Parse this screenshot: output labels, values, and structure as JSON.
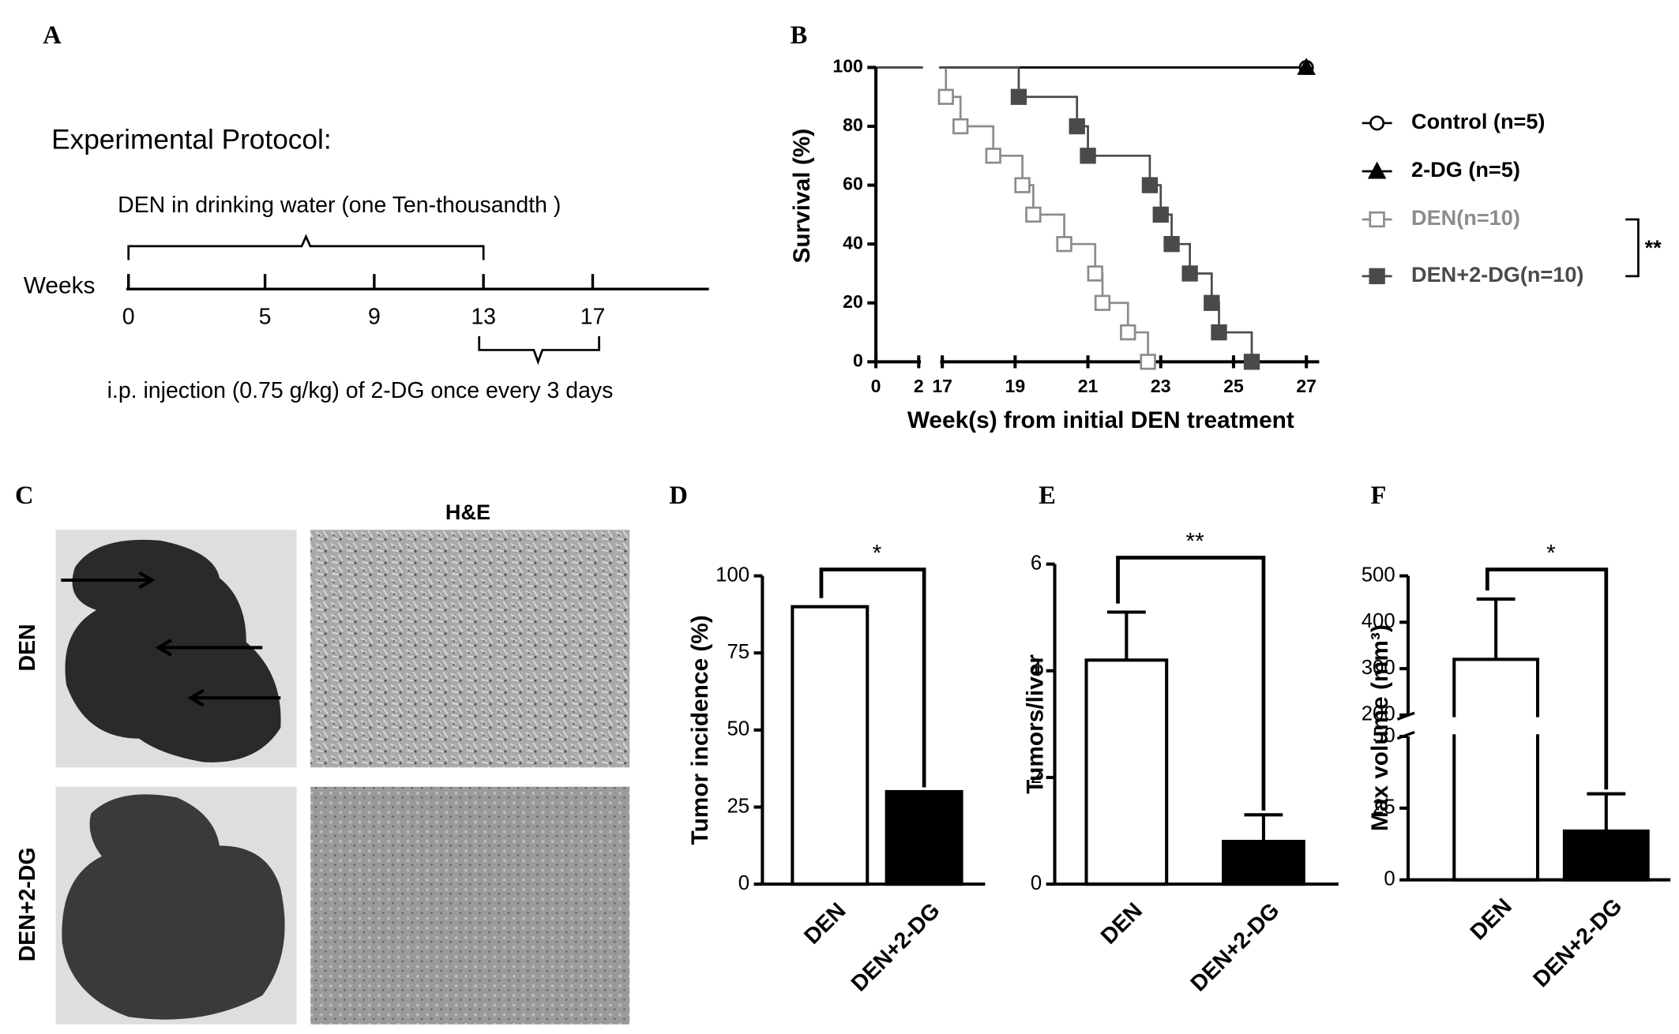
{
  "panel_labels": [
    "A",
    "B",
    "C",
    "D",
    "E",
    "F"
  ],
  "protocol": {
    "title": "Experimental Protocol:",
    "den_label": "DEN in drinking water (one Ten-thousandth )",
    "axis_label": "Weeks",
    "weeks": [
      0,
      5,
      9,
      13,
      17
    ],
    "injection_label": "i.p. injection (0.75 g/kg) of 2-DG once every 3 days"
  },
  "images": {
    "column_title": "H&E",
    "row_labels": [
      "DEN",
      "DEN+2-DG"
    ]
  },
  "chart_data": [
    {
      "type": "step",
      "xlabel": "Week(s) from initial DEN treatment",
      "ylabel": "Survival (%)",
      "xlim": [
        0,
        27
      ],
      "x_break": [
        2,
        17
      ],
      "xticks": [
        0,
        2,
        17,
        19,
        21,
        23,
        25,
        27
      ],
      "ylim": [
        0,
        100
      ],
      "yticks": [
        0,
        20,
        40,
        60,
        80,
        100
      ],
      "series": [
        {
          "name": "Control (n=5)",
          "color": "#000000",
          "marker": "open-circle",
          "x": [
            27
          ],
          "values": [
            100
          ]
        },
        {
          "name": "2-DG (n=5)",
          "color": "#000000",
          "marker": "filled-triangle",
          "x": [
            27
          ],
          "values": [
            100
          ]
        },
        {
          "name": "DEN(n=10)",
          "color": "#8c8c8c",
          "marker": "open-square",
          "x": [
            17.1,
            17.5,
            18.4,
            19.2,
            19.5,
            20.35,
            21.2,
            21.4,
            22.1,
            22.65
          ],
          "values": [
            90,
            80,
            70,
            60,
            50,
            40,
            30,
            20,
            10,
            0
          ]
        },
        {
          "name": "DEN+2-DG(n=10)",
          "color": "#4a4a4a",
          "marker": "filled-square",
          "x": [
            19.1,
            20.7,
            21.0,
            22.7,
            23.0,
            23.3,
            23.8,
            24.4,
            24.6,
            25.5
          ],
          "values": [
            90,
            80,
            70,
            60,
            50,
            40,
            30,
            20,
            10,
            0
          ]
        }
      ],
      "significance": "**"
    },
    {
      "type": "bar",
      "ylabel": "Tumor incidence (%)",
      "categories": [
        "DEN",
        "DEN+2-DG"
      ],
      "values": [
        90,
        30
      ],
      "colors": [
        "#ffffff",
        "#000000"
      ],
      "ylim": [
        0,
        100
      ],
      "yticks": [
        0,
        25,
        50,
        75,
        100
      ],
      "significance": "*"
    },
    {
      "type": "bar",
      "ylabel": "Tumors/liver",
      "categories": [
        "DEN",
        "DEN+2-DG"
      ],
      "values": [
        4.2,
        0.8
      ],
      "errors": [
        0.9,
        0.5
      ],
      "colors": [
        "#ffffff",
        "#000000"
      ],
      "ylim": [
        0,
        6
      ],
      "yticks": [
        0,
        2,
        4,
        6
      ],
      "significance": "**"
    },
    {
      "type": "bar",
      "ylabel": "Max volume (mm³)",
      "categories": [
        "DEN",
        "DEN+2-DG"
      ],
      "values": [
        320,
        17
      ],
      "errors": [
        130,
        13
      ],
      "colors": [
        "#ffffff",
        "#000000"
      ],
      "ylim": [
        0,
        500
      ],
      "y_break": [
        50,
        200
      ],
      "yticks": [
        0,
        25,
        50,
        200,
        300,
        400,
        500
      ],
      "significance": "*"
    }
  ]
}
